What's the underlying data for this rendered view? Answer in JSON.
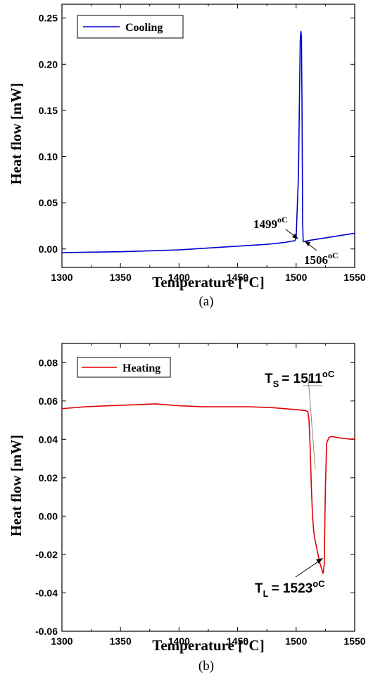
{
  "chart_data": [
    {
      "type": "line",
      "caption": "(a)",
      "xlabel": "Temperature [°C]",
      "ylabel": "Heat flow [mW]",
      "xlim": [
        1300,
        1550
      ],
      "ylim": [
        -0.02,
        0.265
      ],
      "xticks": [
        "1300",
        "1350",
        "1400",
        "1450",
        "1500",
        "1550"
      ],
      "yticks": [
        "0.00",
        "0.05",
        "0.10",
        "0.15",
        "0.20",
        "0.25"
      ],
      "legend": {
        "placement": "top-left",
        "label": "Cooling"
      },
      "series": [
        {
          "name": "Cooling",
          "color": "#0000cc",
          "x": [
            1300,
            1325,
            1350,
            1375,
            1400,
            1425,
            1450,
            1475,
            1490,
            1499,
            1500,
            1502,
            1503,
            1503.5,
            1504,
            1504.5,
            1505,
            1505.5,
            1506,
            1507,
            1510,
            1520,
            1530,
            1540,
            1550
          ],
          "y": [
            -0.004,
            -0.0035,
            -0.003,
            -0.002,
            -0.001,
            0.001,
            0.003,
            0.005,
            0.007,
            0.009,
            0.012,
            0.08,
            0.18,
            0.225,
            0.236,
            0.23,
            0.16,
            0.03,
            0.008,
            0.008,
            0.009,
            0.011,
            0.013,
            0.015,
            0.017
          ]
        }
      ],
      "annotations": [
        {
          "text": "1499",
          "unit": "oC",
          "x": 1499,
          "y": 0.009
        },
        {
          "text": "1506",
          "unit": "oC",
          "x": 1506,
          "y": 0.008
        }
      ]
    },
    {
      "type": "line",
      "caption": "(b)",
      "xlabel": "Temperature [°C]",
      "ylabel": "Heat flow [mW]",
      "xlim": [
        1300,
        1550
      ],
      "ylim": [
        -0.06,
        0.09
      ],
      "xticks": [
        "1300",
        "1350",
        "1400",
        "1450",
        "1500",
        "1550"
      ],
      "yticks": [
        "0.08",
        "0.06",
        "0.04",
        "0.02",
        "0.00",
        "-0.02",
        "-0.04",
        "-0.06"
      ],
      "legend": {
        "placement": "top-left",
        "label": "Heating"
      },
      "series": [
        {
          "name": "Heating",
          "color": "#e00000",
          "x": [
            1300,
            1320,
            1340,
            1360,
            1380,
            1400,
            1420,
            1440,
            1460,
            1480,
            1500,
            1508,
            1510,
            1511,
            1512,
            1513,
            1514,
            1515,
            1516,
            1518,
            1520,
            1522,
            1523,
            1524,
            1525,
            1526,
            1528,
            1530,
            1535,
            1540,
            1545,
            1550
          ],
          "y": [
            0.056,
            0.057,
            0.0575,
            0.058,
            0.0585,
            0.0575,
            0.057,
            0.057,
            0.057,
            0.0565,
            0.0555,
            0.055,
            0.0545,
            0.05,
            0.035,
            0.015,
            0.0,
            -0.008,
            -0.012,
            -0.018,
            -0.024,
            -0.028,
            -0.03,
            -0.025,
            0.015,
            0.038,
            0.041,
            0.0415,
            0.041,
            0.0405,
            0.0402,
            0.0402
          ]
        }
      ],
      "annotations": [
        {
          "text": "T",
          "sub": "S",
          "value": "= 1511",
          "unit": "oC",
          "x": 1511,
          "y": 0.055
        },
        {
          "text": "T",
          "sub": "L",
          "value": "= 1523",
          "unit": "oC",
          "x": 1523,
          "y": -0.03
        }
      ]
    }
  ]
}
